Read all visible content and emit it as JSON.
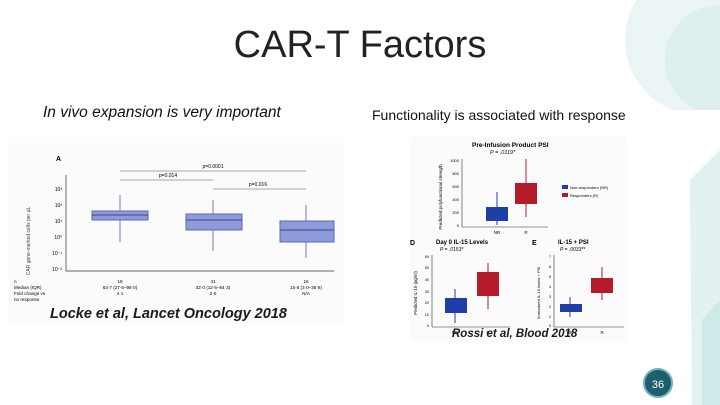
{
  "slide": {
    "title": "CAR-T Factors",
    "left_heading": "In vivo expansion is very important",
    "right_heading": "Functionality is associated with response",
    "page_number": "36"
  },
  "left_figure": {
    "panel_label": "A",
    "ylabel": "CAR gene-marked cells per µL",
    "y_ticks": [
      "10³",
      "10²",
      "10¹",
      "10⁰",
      "10⁻¹",
      "10⁻²"
    ],
    "p_values": [
      "p=0.0001",
      "p=0.014",
      "p=0.016"
    ],
    "row_labels": [
      "n",
      "Median (IQR)",
      "Fold change vs",
      "no response"
    ],
    "groups": [
      {
        "n": "18",
        "median": "63·7 (27·6–98·0)",
        "fold": "4·1"
      },
      {
        "n": "41",
        "median": "32·0 (12·6–64·3)",
        "fold": "2·0"
      },
      {
        "n": "16",
        "median": "15·8 (3·0–35·8)",
        "fold": "N/A"
      }
    ],
    "citation": "Locke et al, Lancet Oncology 2018"
  },
  "right_figure": {
    "top_panel": {
      "label": "",
      "title": "Pre-Infusion Product PSI",
      "p": "P = .0119*",
      "ylabel": "Predicted polyfunctional strength",
      "y_ticks": [
        "1000",
        "800",
        "600",
        "400",
        "200",
        "0"
      ],
      "x_labels": [
        "NR",
        "R"
      ],
      "legend": [
        "Non-responders (NR)",
        "Responders (R)"
      ]
    },
    "panel_d": {
      "label": "D",
      "title": "Day 0 IL-15 Levels",
      "p": "P = .0153*",
      "ylabel": "Predicted IL-15 (pg/ml)",
      "y_ticks": [
        "60",
        "50",
        "40",
        "30",
        "20",
        "10",
        "0"
      ],
      "x_labels": [
        "NR",
        "R"
      ]
    },
    "panel_e": {
      "label": "E",
      "title": "IL-15 + PSI",
      "p": "P = .0033**",
      "ylabel": "Normalized IL-15 levels + PSI",
      "y_ticks": [
        "7",
        "6",
        "5",
        "4",
        "3",
        "2",
        "1",
        "0"
      ],
      "x_labels": [
        "NR",
        "R"
      ]
    },
    "citation": "Rossi et al, Blood 2018"
  },
  "colors": {
    "nr_blue": "#1f3fa8",
    "r_red": "#b31b2b",
    "left_box": "#8e9bd8",
    "accent_teal": "#2a6f7a"
  }
}
